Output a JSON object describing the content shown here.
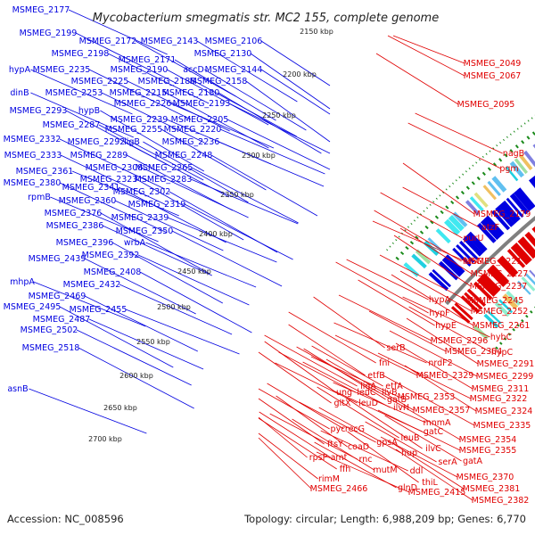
{
  "map": {
    "title": "Mycobacterium smegmatis str. MC2 155, complete genome",
    "accession": "Accession: NC_008596",
    "summary": "Topology: circular; Length: 6,988,209 bp; Genes: 6,770",
    "colors": {
      "forward": "#0000e0",
      "reverse": "#e00000",
      "backbone": "#808080",
      "gc_dots": "#1a8a1a"
    },
    "ticks": [
      "2150 kbp",
      "2200 kbp",
      "2250 kbp",
      "2300 kbp",
      "2350 kbp",
      "2400 kbp",
      "2450 kbp",
      "2500 kbp",
      "2550 kbp",
      "2600 kbp",
      "2650 kbp",
      "2700 kbp"
    ],
    "forward_labels": [
      "MSMEG_2177",
      "MSMEG_2199",
      "MSMEG_2172",
      "MSMEG_2143",
      "MSMEG_2106",
      "MSMEG_2198",
      "MSMEG_2130",
      "MSMEG_2171",
      "hypA",
      "MSMEG_2235",
      "MSMEG_2190",
      "accD",
      "MSMEG_2144",
      "MSMEG_2225",
      "MSMEG_2188",
      "MSMEG_2158",
      "dinB",
      "MSMEG_2253",
      "MSMEG_2215",
      "MSMEG_2180",
      "MSMEG_2226",
      "MSMEG_2193",
      "MSMEG_2293",
      "hypB",
      "MSMEG_2239",
      "MSMEG_2205",
      "MSMEG_2287",
      "MSMEG_2255",
      "MSMEG_2220",
      "MSMEG_2332",
      "MSMEG_2292",
      "ligB",
      "MSMEG_2236",
      "MSMEG_2333",
      "MSMEG_2289",
      "MSMEG_2248",
      "MSMEG_2361",
      "MSMEG_2308",
      "MSMEG_2265",
      "MSMEG_2323",
      "MSMEG_2283",
      "MSMEG_2380",
      "MSMEG_2341",
      "MSMEG_2302",
      "rpmB",
      "MSMEG_2360",
      "MSMEG_2319",
      "MSMEG_2376",
      "MSMEG_2339",
      "MSMEG_2386",
      "MSMEG_2350",
      "MSMEG_2396",
      "wrbA",
      "MSMEG_2392",
      "MSMEG_2439",
      "MSMEG_2408",
      "mhpA",
      "MSMEG_2432",
      "MSMEG_2469",
      "MSMEG_2495",
      "MSMEG_2455",
      "MSMEG_2487",
      "MSMEG_2502",
      "MSMEG_2518",
      "asnB"
    ],
    "reverse_labels": [
      "MSMEG_2049",
      "MSMEG_2067",
      "MSMEG_2095",
      "nagB",
      "pgm",
      "MSMEG_2179",
      "atzF",
      "purU",
      "fabG",
      "MSMEG_2221",
      "MSMEG_2227",
      "MSMEG_2237",
      "hypA",
      "MSMEG_2245",
      "hypF",
      "MSMEG_2252",
      "hypE",
      "MSMEG_2261",
      "hybC",
      "MSMEG_2296",
      "serB",
      "MSMEG_2304",
      "hypC",
      "fni",
      "nrdF2",
      "MSMEG_2291",
      "etfB",
      "MSMEG_2329",
      "MSMEG_2299",
      "ligA",
      "etfA",
      "MSMEG_2311",
      "gatB",
      "MSMEG_2353",
      "MSMEG_2322",
      "ung",
      "leuC",
      "ilvB",
      "MSMEG_2357",
      "mnmA",
      "MSMEG_2324",
      "gltX",
      "leuD",
      "ilvH",
      "MSMEG_2335",
      "pyc",
      "recG",
      "leuB",
      "gatC",
      "ftsY",
      "coaD",
      "gpsA",
      "hup",
      "MSMEG_2354",
      "rpsP",
      "amt",
      "ilvC",
      "MSMEG_2355",
      "rnc",
      "ffh",
      "serA",
      "gatA",
      "mutM",
      "ddl",
      "rimM",
      "thiL",
      "MSMEG_2370",
      "glnD",
      "MSMEG_2466",
      "MSMEG_2415",
      "MSMEG_2381",
      "MSMEG_2382"
    ]
  }
}
